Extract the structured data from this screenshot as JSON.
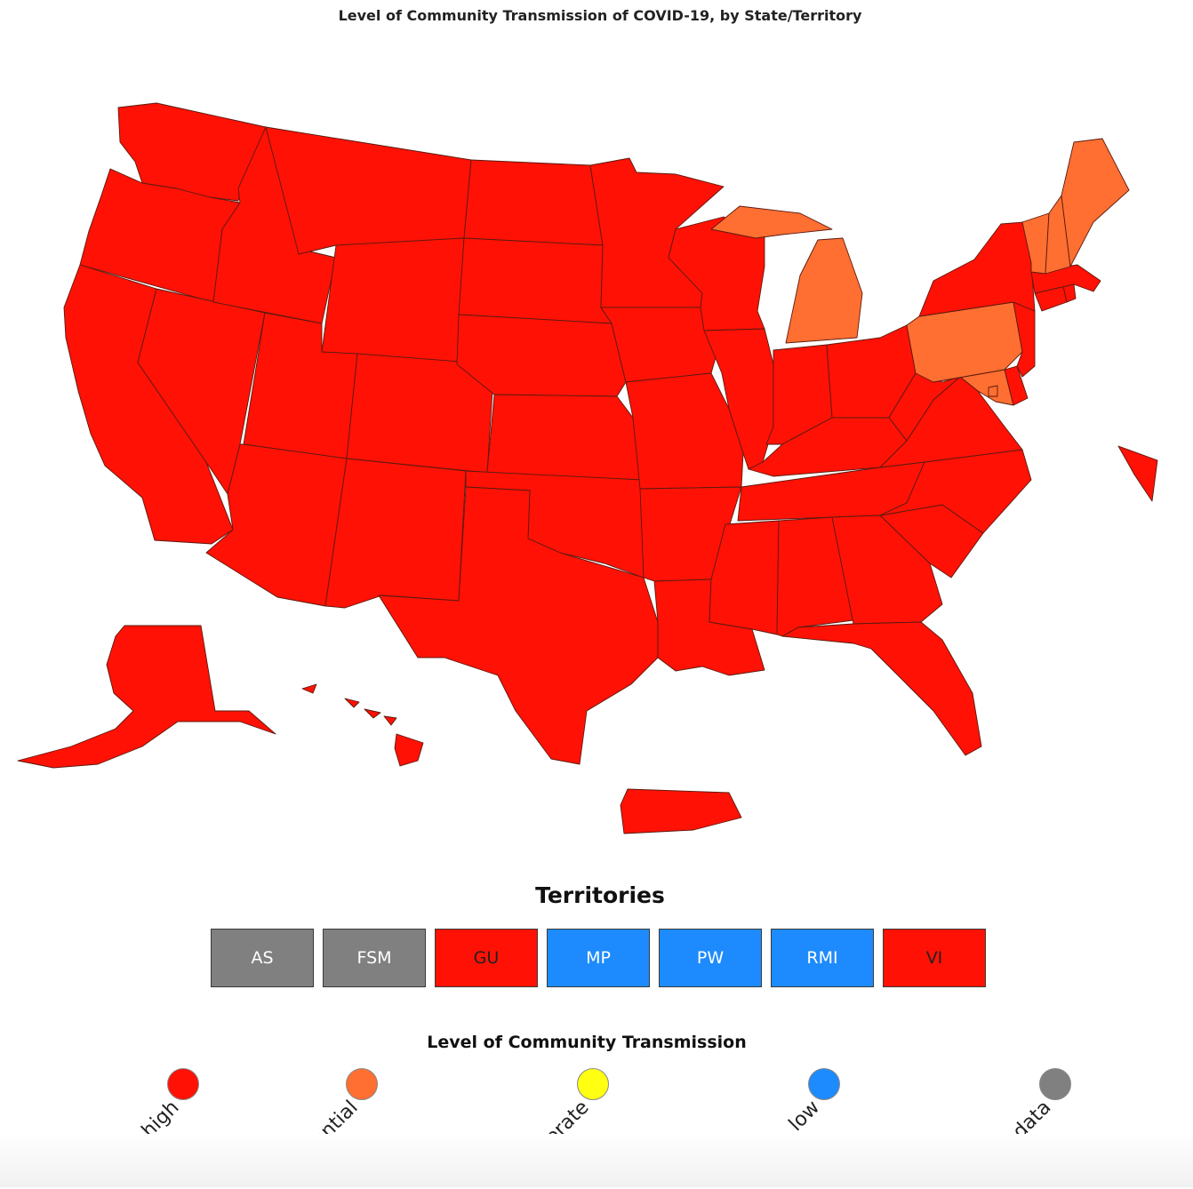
{
  "title": "Level of Community Transmission of COVID-19, by State/Territory",
  "colors": {
    "high": "#ff1105",
    "substantial": "#ff6f31",
    "moderate": "#ffff12",
    "low": "#1d8bfd",
    "no_data": "#808080",
    "border": "#5a1a10"
  },
  "map_regions": [
    {
      "state": "Washington",
      "level": "high"
    },
    {
      "state": "Oregon",
      "level": "high"
    },
    {
      "state": "California",
      "level": "high"
    },
    {
      "state": "Nevada",
      "level": "high"
    },
    {
      "state": "Idaho",
      "level": "high"
    },
    {
      "state": "Montana",
      "level": "high"
    },
    {
      "state": "Wyoming",
      "level": "high"
    },
    {
      "state": "Utah",
      "level": "high"
    },
    {
      "state": "Arizona",
      "level": "high"
    },
    {
      "state": "Colorado",
      "level": "high"
    },
    {
      "state": "New Mexico",
      "level": "high"
    },
    {
      "state": "North Dakota",
      "level": "high"
    },
    {
      "state": "South Dakota",
      "level": "high"
    },
    {
      "state": "Nebraska",
      "level": "high"
    },
    {
      "state": "Kansas",
      "level": "high"
    },
    {
      "state": "Oklahoma",
      "level": "high"
    },
    {
      "state": "Texas",
      "level": "high"
    },
    {
      "state": "Minnesota",
      "level": "high"
    },
    {
      "state": "Iowa",
      "level": "high"
    },
    {
      "state": "Missouri",
      "level": "high"
    },
    {
      "state": "Arkansas",
      "level": "high"
    },
    {
      "state": "Louisiana",
      "level": "high"
    },
    {
      "state": "Wisconsin",
      "level": "high"
    },
    {
      "state": "Illinois",
      "level": "high"
    },
    {
      "state": "Michigan",
      "level": "substantial"
    },
    {
      "state": "Indiana",
      "level": "high"
    },
    {
      "state": "Ohio",
      "level": "high"
    },
    {
      "state": "Kentucky",
      "level": "high"
    },
    {
      "state": "Tennessee",
      "level": "high"
    },
    {
      "state": "Mississippi",
      "level": "high"
    },
    {
      "state": "Alabama",
      "level": "high"
    },
    {
      "state": "Georgia",
      "level": "high"
    },
    {
      "state": "Florida",
      "level": "high"
    },
    {
      "state": "South Carolina",
      "level": "high"
    },
    {
      "state": "North Carolina",
      "level": "high"
    },
    {
      "state": "Virginia",
      "level": "high"
    },
    {
      "state": "West Virginia",
      "level": "high"
    },
    {
      "state": "Maryland",
      "level": "substantial"
    },
    {
      "state": "Delaware",
      "level": "high"
    },
    {
      "state": "Pennsylvania",
      "level": "substantial"
    },
    {
      "state": "New Jersey",
      "level": "high"
    },
    {
      "state": "New York",
      "level": "high"
    },
    {
      "state": "Connecticut",
      "level": "high"
    },
    {
      "state": "Rhode Island",
      "level": "high"
    },
    {
      "state": "Massachusetts",
      "level": "high"
    },
    {
      "state": "Vermont",
      "level": "substantial"
    },
    {
      "state": "New Hampshire",
      "level": "substantial"
    },
    {
      "state": "Maine",
      "level": "substantial"
    },
    {
      "state": "District of Columbia",
      "level": "substantial"
    },
    {
      "state": "Alaska",
      "level": "high"
    },
    {
      "state": "Hawaii",
      "level": "high"
    },
    {
      "state": "Puerto Rico",
      "level": "high"
    },
    {
      "state": "Virgin Islands",
      "level": "high"
    }
  ],
  "territories": {
    "heading": "Territories",
    "items": [
      {
        "label": "AS",
        "level": "no_data"
      },
      {
        "label": "FSM",
        "level": "no_data"
      },
      {
        "label": "GU",
        "level": "high"
      },
      {
        "label": "MP",
        "level": "low"
      },
      {
        "label": "PW",
        "level": "low"
      },
      {
        "label": "RMI",
        "level": "low"
      },
      {
        "label": "VI",
        "level": "high"
      }
    ]
  },
  "legend": {
    "title": "Level of Community Transmission",
    "items": [
      {
        "key": "high",
        "label": "high"
      },
      {
        "key": "substantial",
        "label": "substantial"
      },
      {
        "key": "moderate",
        "label": "moderate"
      },
      {
        "key": "low",
        "label": "low"
      },
      {
        "key": "no_data",
        "label": "no data"
      }
    ]
  }
}
